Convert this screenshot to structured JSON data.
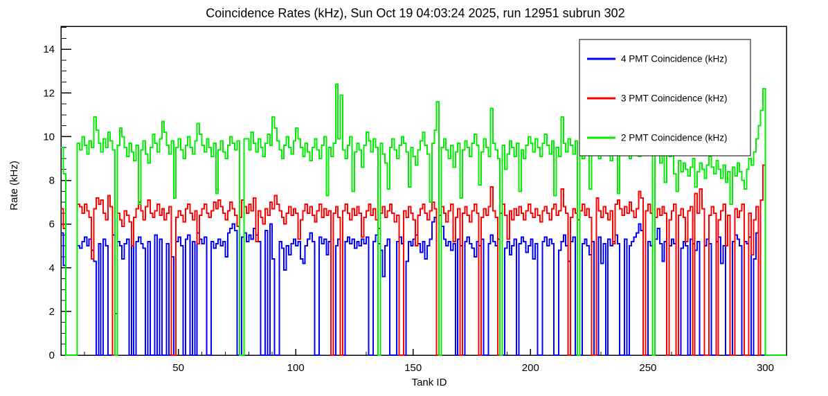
{
  "title": "Coincidence Rates (kHz), Sun Oct 19 04:03:24 2025, run 12951 subrun 302",
  "colors": {
    "background": "#ffffff",
    "frame": "#000000",
    "text": "#000000"
  },
  "chart_data": {
    "type": "line",
    "style": "step-histogram",
    "title": "Coincidence Rates (kHz), Sun Oct 19 04:03:24 2025, run 12951 subrun 302",
    "xlabel": "Tank ID",
    "ylabel": "Rate (kHz)",
    "xlim": [
      0,
      309
    ],
    "ylim": [
      0,
      15.05
    ],
    "x_major_ticks": [
      50,
      100,
      150,
      200,
      250,
      300
    ],
    "x_minor_step": 10,
    "y_major_ticks": [
      0,
      2,
      4,
      6,
      8,
      10,
      12,
      14
    ],
    "y_minor_step": 0.5,
    "grid": false,
    "legend_position": "top-right",
    "x_start": 0,
    "bin_width": 1,
    "series": [
      {
        "name": "4 PMT Coincidence (kHz)",
        "color": "#0000ff",
        "values": [
          5.6,
          4.1,
          0,
          0,
          0,
          0,
          0,
          5.0,
          4.9,
          5.2,
          5.4,
          5.0,
          5.3,
          4.8,
          4.3,
          0,
          5.1,
          0,
          5.3,
          5.0,
          0,
          0,
          5.5,
          0,
          5.2,
          5.0,
          4.4,
          5.1,
          5.3,
          0,
          5.0,
          0,
          5.2,
          5.4,
          5.1,
          4.9,
          0,
          5.2,
          0,
          0,
          5.5,
          0,
          5.3,
          0,
          0,
          5.1,
          0,
          4.5,
          0,
          5.2,
          5.4,
          5.0,
          0,
          5.3,
          5.5,
          0,
          5.2,
          0,
          5.6,
          5.3,
          5.1,
          5.4,
          0,
          0,
          5.2,
          4.9,
          5.1,
          5.3,
          5.0,
          5.2,
          4.5,
          5.6,
          5.8,
          6.0,
          5.7,
          0,
          0,
          5.4,
          5.6,
          5.2,
          5.5,
          5.3,
          5.8,
          5.5,
          5.2,
          0,
          0,
          5.7,
          0,
          6.0,
          4.4,
          0,
          0,
          5.2,
          4.9,
          3.9,
          5.0,
          4.6,
          5.1,
          5.3,
          5.0,
          5.2,
          4.4,
          4.2,
          5.0,
          5.3,
          5.6,
          5.2,
          0,
          0,
          5.4,
          5.1,
          5.3,
          4.6,
          5.2,
          0,
          0,
          5.0,
          5.3,
          0,
          0,
          5.2,
          5.4,
          5.1,
          5.3,
          4.9,
          5.2,
          5.0,
          5.3,
          5.1,
          5.4,
          0,
          0,
          5.2,
          5.5,
          5.1,
          4.8,
          3.6,
          5.0,
          5.3,
          0,
          0,
          0,
          5.2,
          5.4,
          5.1,
          0,
          4.3,
          5.2,
          5.0,
          5.3,
          5.5,
          5.1,
          4.7,
          5.2,
          4.4,
          5.0,
          5.3,
          6.1,
          6.3,
          0,
          0,
          5.9,
          5.3,
          5.0,
          5.2,
          4.8,
          5.1,
          0,
          5.3,
          5.0,
          0,
          5.2,
          5.4,
          5.1,
          4.9,
          4.5,
          5.2,
          5.0,
          5.3,
          0,
          0,
          5.1,
          5.5,
          5.2,
          5.0,
          5.3,
          0,
          0,
          4.9,
          5.2,
          4.6,
          5.0,
          5.3,
          0,
          5.1,
          5.4,
          5.2,
          4.7,
          5.0,
          5.3,
          4.4,
          5.1,
          0,
          0,
          5.2,
          5.4,
          5.0,
          5.3,
          5.1,
          0,
          0,
          4.8,
          5.2,
          5.5,
          5.0,
          4.3,
          5.2,
          5.4,
          0,
          0,
          0,
          5.1,
          5.3,
          5.0,
          4.6,
          5.2,
          0,
          0,
          5.4,
          4.2,
          5.1,
          0,
          5.3,
          5.0,
          5.2,
          5.5,
          5.1,
          0,
          0,
          5.3,
          0,
          5.0,
          5.2,
          5.4,
          5.6,
          6.0,
          5.7,
          0,
          0,
          5.2,
          5.0,
          0,
          5.3,
          5.8,
          5.1,
          4.3,
          5.2,
          0,
          5.0,
          5.3,
          5.1,
          0,
          0,
          4.9,
          5.2,
          5.0,
          0,
          5.3,
          5.1,
          4.8,
          5.2,
          0,
          0,
          5.0,
          5.3,
          5.1,
          0,
          0,
          5.2,
          5.4,
          4.2,
          5.0,
          0,
          0,
          0,
          5.2,
          5.5,
          5.3,
          5.0,
          0,
          5.2,
          5.1,
          5.4,
          0,
          4.4,
          5.6,
          0,
          0,
          0,
          0,
          0,
          0,
          0,
          0,
          0
        ]
      },
      {
        "name": "3 PMT Coincidence (kHz)",
        "color": "#ff0000",
        "values": [
          6.7,
          5.8,
          0,
          0,
          0,
          0,
          0,
          6.9,
          6.8,
          6.5,
          6.9,
          6.6,
          6.3,
          4.4,
          6.7,
          7.2,
          6.9,
          7.1,
          6.5,
          6.2,
          7.3,
          6.8,
          0,
          1.9,
          6.5,
          6.2,
          5.9,
          6.6,
          6.4,
          6.1,
          5.0,
          6.3,
          6.7,
          7.0,
          6.6,
          6.2,
          6.8,
          7.1,
          6.5,
          6.3,
          6.6,
          6.9,
          6.4,
          6.7,
          6.2,
          6.5,
          6.8,
          0,
          0,
          6.3,
          6.6,
          6.4,
          6.1,
          6.7,
          6.9,
          6.5,
          6.2,
          6.6,
          5.1,
          6.4,
          6.7,
          6.9,
          6.5,
          6.3,
          6.6,
          7.0,
          6.7,
          7.1,
          6.8,
          6.5,
          6.2,
          6.6,
          7.0,
          6.7,
          6.4,
          5.9,
          6.3,
          7.1,
          6.8,
          6.5,
          6.9,
          6.6,
          7.2,
          5.2,
          6.6,
          6.3,
          6.0,
          6.7,
          6.4,
          7.0,
          6.7,
          7.3,
          6.9,
          6.6,
          6.3,
          6.0,
          6.5,
          6.8,
          6.4,
          6.7,
          6.5,
          5.3,
          6.2,
          6.6,
          6.9,
          6.5,
          6.8,
          6.4,
          6.1,
          6.6,
          6.9,
          6.3,
          6.7,
          6.4,
          6.6,
          0,
          6.5,
          6.8,
          6.3,
          0,
          6.6,
          6.9,
          6.5,
          6.2,
          6.7,
          6.4,
          6.8,
          6.5,
          5.4,
          6.3,
          6.6,
          6.9,
          6.4,
          6.7,
          6.2,
          5.8,
          6.5,
          6.8,
          6.3,
          6.6,
          6.9,
          6.5,
          6.1,
          6.4,
          0,
          0,
          6.6,
          6.3,
          6.8,
          6.5,
          6.2,
          5.0,
          6.4,
          6.7,
          6.9,
          6.5,
          6.2,
          6.6,
          7.0,
          6.7,
          0,
          6.4,
          6.8,
          6.5,
          6.1,
          6.6,
          6.9,
          5.2,
          6.3,
          6.7,
          0,
          6.5,
          6.8,
          6.4,
          6.1,
          6.6,
          6.9,
          6.5,
          0,
          6.3,
          6.7,
          6.4,
          6.8,
          7.7,
          6.6,
          6.3,
          0,
          6.5,
          6.9,
          6.4,
          5.3,
          6.6,
          6.2,
          6.7,
          6.4,
          6.8,
          6.5,
          6.2,
          6.6,
          6.9,
          6.5,
          6.3,
          6.7,
          6.4,
          6.1,
          6.6,
          6.8,
          6.5,
          6.2,
          6.7,
          6.9,
          6.4,
          6.6,
          7.6,
          6.8,
          6.5,
          0,
          6.3,
          6.7,
          6.5,
          6.2,
          6.6,
          6.9,
          6.4,
          6.7,
          6.3,
          0,
          0,
          7.2,
          6.6,
          6.3,
          6.8,
          6.5,
          6.2,
          6.6,
          5.1,
          6.9,
          7.1,
          6.7,
          6.4,
          6.8,
          6.5,
          7.0,
          6.6,
          6.3,
          6.7,
          7.5,
          7.2,
          0,
          6.6,
          6.9,
          6.5,
          0,
          6.3,
          6.7,
          6.4,
          6.8,
          6.5,
          0,
          6.2,
          6.6,
          6.9,
          0,
          6.4,
          6.7,
          6.3,
          5.2,
          6.6,
          6.8,
          0,
          7.4,
          6.5,
          7.6,
          6.7,
          0,
          0,
          6.4,
          6.8,
          6.5,
          0,
          6.2,
          6.6,
          6.9,
          5.0,
          6.4,
          0,
          0,
          6.7,
          6.3,
          6.6,
          6.9,
          0,
          0,
          6.5,
          4.6,
          6.2,
          6.8,
          0,
          7.1,
          8.7,
          0,
          0,
          0,
          0,
          0,
          0
        ]
      },
      {
        "name": "2 PMT Coincidence (kHz)",
        "color": "#00ee00",
        "values": [
          9.5,
          8.3,
          0,
          0,
          0,
          0,
          0,
          9.7,
          9.4,
          10.0,
          9.6,
          9.2,
          9.8,
          9.5,
          10.9,
          10.3,
          9.7,
          9.3,
          9.9,
          9.5,
          10.2,
          9.8,
          9.4,
          0,
          9.6,
          10.4,
          10.0,
          9.5,
          9.1,
          9.7,
          9.3,
          8.9,
          9.6,
          6.9,
          9.4,
          9.8,
          9.2,
          8.8,
          9.5,
          10.1,
          9.7,
          9.3,
          9.9,
          10.7,
          10.2,
          9.6,
          9.2,
          9.8,
          7.2,
          9.5,
          9.9,
          9.4,
          9.0,
          9.6,
          10.0,
          9.5,
          9.2,
          9.8,
          10.6,
          10.1,
          9.6,
          9.3,
          9.9,
          9.5,
          9.1,
          9.7,
          7.4,
          9.4,
          9.8,
          9.3,
          9.0,
          9.6,
          10.0,
          9.7,
          9.4,
          9.8,
          0,
          0,
          9.9,
          9.9,
          9.4,
          10.2,
          9.7,
          9.3,
          9.9,
          9.5,
          9.1,
          9.7,
          10.1,
          9.6,
          10.9,
          10.4,
          9.8,
          9.4,
          9.0,
          9.6,
          10.0,
          9.5,
          9.2,
          9.8,
          10.4,
          9.9,
          9.5,
          9.1,
          9.7,
          9.3,
          8.9,
          9.5,
          9.9,
          9.4,
          9.0,
          9.6,
          10.0,
          7.3,
          9.5,
          9.1,
          9.7,
          12.4,
          9.9,
          11.9,
          9.4,
          9.0,
          9.6,
          10.0,
          7.5,
          9.3,
          9.7,
          9.4,
          8.6,
          9.6,
          10.2,
          9.8,
          9.3,
          9.9,
          9.5,
          0,
          9.7,
          9.2,
          8.8,
          7.6,
          9.5,
          9.9,
          9.4,
          9.0,
          9.6,
          10.0,
          9.7,
          9.3,
          7.7,
          9.5,
          9.1,
          8.7,
          9.4,
          9.8,
          10.2,
          9.6,
          9.2,
          7.0,
          9.7,
          10.3,
          11.6,
          0,
          9.5,
          9.9,
          9.4,
          9.0,
          9.6,
          8.6,
          9.3,
          9.7,
          7.2,
          9.4,
          9.8,
          9.5,
          9.1,
          9.7,
          10.1,
          9.6,
          7.8,
          9.3,
          9.9,
          9.5,
          9.1,
          11.3,
          9.7,
          9.4,
          9.0,
          0,
          9.6,
          8.5,
          9.2,
          9.8,
          9.5,
          9.1,
          9.7,
          7.5,
          9.4,
          9.0,
          9.6,
          10.0,
          9.7,
          9.3,
          9.9,
          9.5,
          9.1,
          9.7,
          10.1,
          9.6,
          9.2,
          9.8,
          7.3,
          9.5,
          9.1,
          10.9,
          9.7,
          9.3,
          9.9,
          9.6,
          9.2,
          9.8,
          0,
          9.4,
          9.0,
          9.6,
          10.0,
          7.6,
          9.3,
          9.7,
          9.4,
          9.0,
          9.6,
          10.2,
          9.8,
          9.3,
          8.9,
          9.5,
          9.9,
          7.4,
          9.6,
          9.2,
          9.8,
          9.4,
          9.0,
          9.6,
          10.0,
          9.5,
          9.1,
          9.7,
          10.3,
          9.8,
          11.0,
          9.4,
          0,
          9.6,
          9.2,
          8.8,
          9.4,
          7.9,
          9.5,
          9.1,
          9.7,
          8.3,
          7.5,
          8.9,
          8.4,
          8.8,
          8.5,
          8.2,
          8.6,
          9.0,
          7.7,
          8.4,
          8.8,
          8.5,
          8.1,
          8.7,
          9.1,
          8.6,
          8.3,
          8.9,
          8.5,
          8.1,
          8.7,
          7.9,
          8.4,
          6.9,
          8.6,
          8.2,
          8.8,
          8.4,
          8.0,
          7.6,
          8.5,
          9.0,
          8.7,
          9.3,
          9.9,
          10.5,
          11.2,
          12.2,
          0,
          0,
          0,
          0,
          0,
          0
        ]
      }
    ]
  }
}
